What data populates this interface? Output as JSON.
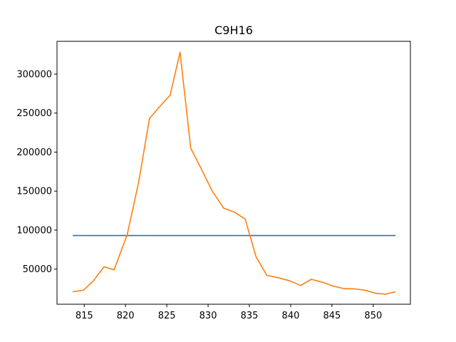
{
  "chart_data": {
    "type": "line",
    "title": "C9H16",
    "xlabel": "",
    "ylabel": "",
    "xlim": [
      811.7,
      854.5
    ],
    "ylim": [
      5000,
      342000
    ],
    "grid": false,
    "legend": "none",
    "x_ticks": [
      815,
      820,
      825,
      830,
      835,
      840,
      845,
      850
    ],
    "y_ticks": [
      50000,
      100000,
      150000,
      200000,
      250000,
      300000
    ],
    "series": [
      {
        "color": "#1f77b4",
        "x": [
          813.6,
          852.7
        ],
        "y": [
          93000,
          93000
        ]
      },
      {
        "color": "#ff7f0e",
        "x": [
          813.6,
          814.9,
          816.1,
          817.4,
          818.6,
          820.2,
          821.6,
          822.9,
          824.1,
          825.4,
          826.6,
          827.9,
          829.2,
          830.5,
          831.9,
          833.2,
          834.5,
          835.8,
          837.1,
          838.5,
          839.9,
          841.2,
          842.5,
          843.9,
          845.2,
          846.5,
          847.8,
          849.0,
          850.3,
          851.5,
          852.7
        ],
        "y": [
          21000,
          23000,
          35000,
          53000,
          49000,
          94000,
          162000,
          243000,
          258000,
          273000,
          328000,
          205000,
          178000,
          150000,
          128000,
          123000,
          114000,
          66000,
          42000,
          39000,
          35000,
          29000,
          37000,
          33000,
          28000,
          25000,
          24500,
          23000,
          19000,
          18000,
          21000
        ]
      }
    ]
  }
}
